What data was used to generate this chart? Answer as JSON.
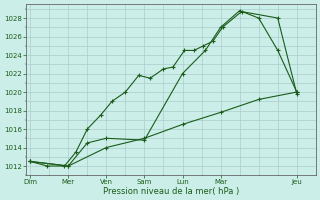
{
  "background_color": "#cceee8",
  "grid_color": "#aacccc",
  "line_color": "#1a5c1a",
  "xlabel": "Pression niveau de la mer( hPa )",
  "ylim": [
    1011,
    1029.5
  ],
  "xlim": [
    -0.1,
    7.5
  ],
  "yticks": [
    1012,
    1014,
    1016,
    1018,
    1020,
    1022,
    1024,
    1026,
    1028
  ],
  "xtick_labels": [
    "Dim",
    "Mer",
    "Ven",
    "Sam",
    "Lun",
    "Mar",
    "Jeu"
  ],
  "xtick_positions": [
    0,
    1,
    2,
    3,
    4,
    5,
    7
  ],
  "line1_x": [
    0,
    0.45,
    0.9,
    1.2,
    1.5,
    1.85,
    2.15,
    2.5,
    2.85,
    3.15,
    3.5,
    3.75,
    4.05,
    4.3,
    4.55,
    4.8,
    5.05,
    5.55,
    6.5,
    7.0
  ],
  "line1_y": [
    1012.5,
    1012,
    1012,
    1013.5,
    1016,
    1017.5,
    1019,
    1020,
    1021.8,
    1021.5,
    1022.5,
    1022.7,
    1024.5,
    1024.5,
    1025,
    1025.5,
    1027,
    1028.7,
    1028,
    1019.8
  ],
  "line2_x": [
    0,
    1.0,
    1.5,
    2.0,
    3.0,
    4.0,
    4.6,
    5.0,
    5.5,
    6.0,
    6.5,
    7.0
  ],
  "line2_y": [
    1012.5,
    1012,
    1014.5,
    1015,
    1014.8,
    1022,
    1024.5,
    1027,
    1028.8,
    1028,
    1024.5,
    1020
  ],
  "line3_x": [
    0,
    1.0,
    2.0,
    3.0,
    4.0,
    5.0,
    6.0,
    7.0
  ],
  "line3_y": [
    1012.5,
    1012,
    1014,
    1015,
    1016.5,
    1017.8,
    1019.2,
    1020
  ]
}
